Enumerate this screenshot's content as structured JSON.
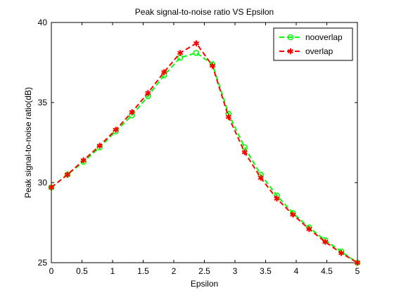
{
  "chart_data": {
    "type": "line",
    "title": "Peak signal-to-noise ratio VS Epsilon",
    "xlabel": "Epsilon",
    "ylabel": "Peak signal-to-noise ratio(dB)",
    "xlim": [
      0,
      5
    ],
    "ylim": [
      25,
      40
    ],
    "xticks": [
      0,
      0.5,
      1,
      1.5,
      2,
      2.5,
      3,
      3.5,
      4,
      4.5,
      5
    ],
    "xtick_labels": [
      "0",
      "0.5",
      "1",
      "1.5",
      "2",
      "2.5",
      "3",
      "3.5",
      "4",
      "4.5",
      "5"
    ],
    "yticks": [
      25,
      30,
      35,
      40
    ],
    "ytick_labels": [
      "25",
      "30",
      "35",
      "40"
    ],
    "grid": false,
    "legend_position": "top-right",
    "x": [
      0,
      0.263,
      0.526,
      0.789,
      1.053,
      1.316,
      1.579,
      1.842,
      2.105,
      2.368,
      2.632,
      2.895,
      3.158,
      3.421,
      3.684,
      3.947,
      4.211,
      4.474,
      4.737,
      5.0
    ],
    "series": [
      {
        "name": "nooverlap",
        "color": "#00ff00",
        "marker": "circle",
        "line_style": "dashed",
        "values": [
          29.7,
          30.5,
          31.3,
          32.2,
          33.2,
          34.2,
          35.4,
          36.7,
          37.8,
          38.1,
          37.4,
          34.3,
          32.2,
          30.5,
          29.2,
          28.1,
          27.2,
          26.4,
          25.7,
          25.0
        ]
      },
      {
        "name": "overlap",
        "color": "#ff0000",
        "marker": "asterisk",
        "line_style": "dashed",
        "values": [
          29.7,
          30.5,
          31.4,
          32.3,
          33.3,
          34.4,
          35.6,
          36.9,
          38.1,
          38.7,
          37.3,
          34.1,
          31.9,
          30.3,
          29.0,
          28.0,
          27.1,
          26.3,
          25.6,
          25.0
        ]
      }
    ]
  }
}
